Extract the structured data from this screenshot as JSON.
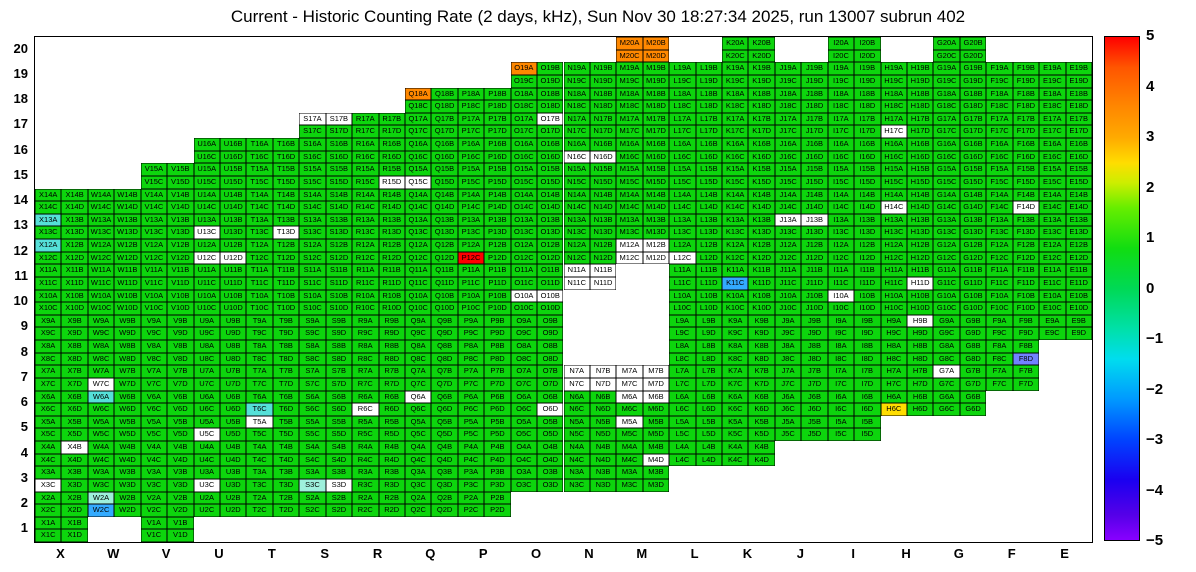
{
  "title": "Current - Historic Counting Rate (2 days, kHz), Sun Nov 30 18:27:34 2025, run 13007 subrun 402",
  "chart_data": {
    "type": "heatmap",
    "title": "Current - Historic Counting Rate (2 days, kHz), Sun Nov 30 18:27:34 2025, run 13007 subrun 402",
    "columns": [
      "X",
      "W",
      "V",
      "U",
      "T",
      "S",
      "R",
      "Q",
      "P",
      "O",
      "N",
      "M",
      "L",
      "K",
      "J",
      "I",
      "H",
      "G",
      "F",
      "E"
    ],
    "rows": [
      20,
      19,
      18,
      17,
      16,
      15,
      14,
      13,
      12,
      11,
      10,
      9,
      8,
      7,
      6,
      5,
      4,
      3,
      2,
      1
    ],
    "subcells": [
      "A",
      "B",
      "C",
      "D"
    ],
    "x_axis_labels": [
      "X",
      "W",
      "V",
      "U",
      "T",
      "S",
      "R",
      "Q",
      "P",
      "O",
      "N",
      "M",
      "L",
      "K",
      "J",
      "I",
      "H",
      "G",
      "F",
      "E"
    ],
    "y_axis_labels": [
      "20",
      "19",
      "18",
      "17",
      "16",
      "15",
      "14",
      "13",
      "12",
      "11",
      "10",
      "9",
      "8",
      "7",
      "6",
      "5",
      "4",
      "3",
      "2",
      "1"
    ],
    "row_columns": {
      "20": [
        "M",
        "K",
        "I",
        "G"
      ],
      "19": [
        "O",
        "N",
        "M",
        "L",
        "K",
        "J",
        "I",
        "H",
        "G",
        "F",
        "E"
      ],
      "18": [
        "Q",
        "P",
        "O",
        "N",
        "M",
        "L",
        "K",
        "J",
        "I",
        "H",
        "G",
        "F",
        "E"
      ],
      "17": [
        "S",
        "R",
        "Q",
        "P",
        "O",
        "N",
        "M",
        "L",
        "K",
        "J",
        "I",
        "H",
        "G",
        "F",
        "E"
      ],
      "16": [
        "U",
        "T",
        "S",
        "R",
        "Q",
        "P",
        "O",
        "N",
        "M",
        "L",
        "K",
        "J",
        "I",
        "H",
        "G",
        "F",
        "E"
      ],
      "15": [
        "V",
        "U",
        "T",
        "S",
        "R",
        "Q",
        "P",
        "O",
        "N",
        "M",
        "L",
        "K",
        "J",
        "I",
        "H",
        "G",
        "F",
        "E"
      ],
      "14": [
        "X",
        "W",
        "V",
        "U",
        "T",
        "S",
        "R",
        "Q",
        "P",
        "O",
        "N",
        "M",
        "L",
        "K",
        "J",
        "I",
        "H",
        "G",
        "F",
        "E"
      ],
      "13": [
        "X",
        "W",
        "V",
        "U",
        "T",
        "S",
        "R",
        "Q",
        "P",
        "O",
        "N",
        "M",
        "L",
        "K",
        "J",
        "I",
        "H",
        "G",
        "F",
        "E"
      ],
      "12": [
        "X",
        "W",
        "V",
        "U",
        "T",
        "S",
        "R",
        "Q",
        "P",
        "O",
        "N",
        "M",
        "L",
        "K",
        "J",
        "I",
        "H",
        "G",
        "F",
        "E"
      ],
      "11": [
        "X",
        "W",
        "V",
        "U",
        "T",
        "S",
        "R",
        "Q",
        "P",
        "O",
        "N",
        "L",
        "K",
        "J",
        "I",
        "H",
        "G",
        "F",
        "E"
      ],
      "10": [
        "X",
        "W",
        "V",
        "U",
        "T",
        "S",
        "R",
        "Q",
        "P",
        "O",
        "L",
        "K",
        "J",
        "I",
        "H",
        "G",
        "F",
        "E"
      ],
      "9": [
        "X",
        "W",
        "V",
        "U",
        "T",
        "S",
        "R",
        "Q",
        "P",
        "O",
        "L",
        "K",
        "J",
        "I",
        "H",
        "G",
        "F",
        "E"
      ],
      "8": [
        "X",
        "W",
        "V",
        "U",
        "T",
        "S",
        "R",
        "Q",
        "P",
        "O",
        "L",
        "K",
        "J",
        "I",
        "H",
        "G",
        "F"
      ],
      "7": [
        "X",
        "W",
        "V",
        "U",
        "T",
        "S",
        "R",
        "Q",
        "P",
        "O",
        "N",
        "M",
        "L",
        "K",
        "J",
        "I",
        "H",
        "G",
        "F"
      ],
      "6": [
        "X",
        "W",
        "V",
        "U",
        "T",
        "S",
        "R",
        "Q",
        "P",
        "O",
        "N",
        "M",
        "L",
        "K",
        "J",
        "I",
        "H",
        "G"
      ],
      "5": [
        "X",
        "W",
        "V",
        "U",
        "T",
        "S",
        "R",
        "Q",
        "P",
        "O",
        "N",
        "M",
        "L",
        "K",
        "J",
        "I"
      ],
      "4": [
        "X",
        "W",
        "V",
        "U",
        "T",
        "S",
        "R",
        "Q",
        "P",
        "O",
        "N",
        "M",
        "L",
        "K"
      ],
      "3": [
        "X",
        "W",
        "V",
        "U",
        "T",
        "S",
        "R",
        "Q",
        "P",
        "O",
        "N",
        "M"
      ],
      "2": [
        "X",
        "W",
        "V",
        "U",
        "T",
        "S",
        "R",
        "Q",
        "P"
      ],
      "1": [
        "X",
        "V"
      ]
    },
    "default_color": "green",
    "palette": {
      "green": "#0dd50d",
      "white": "#ffffff",
      "red": "#ff0000",
      "orange": "#ff8800",
      "yellow": "#ffdd00",
      "cyan": "#55e0d8",
      "paleaqua": "#9ef0dc",
      "skyblue": "#33aaff",
      "blue": "#7282ff"
    },
    "cell_colors": {
      "M20A": "orange",
      "M20B": "orange",
      "M20C": "orange",
      "M20D": "orange",
      "O19A": "orange",
      "Q18A": "orange",
      "S17A": "white",
      "S17B": "white",
      "O17B": "white",
      "H17C": "white",
      "N16C": "white",
      "N16D": "white",
      "R15D": "white",
      "Q15C": "white",
      "H14C": "white",
      "F14D": "white",
      "X13A": "cyan",
      "J13A": "white",
      "J13B": "white",
      "U13C": "white",
      "T13D": "white",
      "X12A": "cyan",
      "U12C": "white",
      "U12D": "white",
      "P12C": "red",
      "M12A": "white",
      "M12B": "white",
      "M12C": "white",
      "M12D": "white",
      "L12C": "white",
      "N11A": "white",
      "N11B": "white",
      "N11C": "white",
      "N11D": "white",
      "K11C": "skyblue",
      "H11D": "white",
      "O10A": "white",
      "O10B": "white",
      "I10A": "white",
      "H9B": "white",
      "F8D": "blue",
      "W7C": "white",
      "G7A": "white",
      "N7A": "white",
      "N7B": "white",
      "N7C": "white",
      "N7D": "white",
      "M7A": "white",
      "M7B": "white",
      "M7C": "white",
      "M7D": "white",
      "W6A": "cyan",
      "T6C": "cyan",
      "R6C": "white",
      "Q6A": "white",
      "O6D": "white",
      "M6A": "white",
      "M6B": "white",
      "H6C": "yellow",
      "M5A": "white",
      "T5A": "white",
      "U5C": "white",
      "X4B": "white",
      "M4D": "white",
      "X3C": "white",
      "U3C": "white",
      "S3C": "paleaqua",
      "S3D": "white",
      "W2A": "paleaqua",
      "W2C": "skyblue"
    },
    "colorbar": {
      "min": -5,
      "max": 5,
      "tick_labels": [
        "5",
        "4",
        "3",
        "2",
        "1",
        "0",
        "−1",
        "−2",
        "−3",
        "−4",
        "−5"
      ],
      "gradient_stops": [
        {
          "v": 5.0,
          "color": "#ff0000"
        },
        {
          "v": 4.4,
          "color": "#ff5500"
        },
        {
          "v": 3.6,
          "color": "#ff8800"
        },
        {
          "v": 3.0,
          "color": "#ffaa00"
        },
        {
          "v": 2.5,
          "color": "#ffdd00"
        },
        {
          "v": 2.1,
          "color": "#ccee00"
        },
        {
          "v": 1.6,
          "color": "#66ee00"
        },
        {
          "v": 0.8,
          "color": "#11dd11"
        },
        {
          "v": 0.0,
          "color": "#00d955"
        },
        {
          "v": -0.8,
          "color": "#00e0a8"
        },
        {
          "v": -1.4,
          "color": "#00ddee"
        },
        {
          "v": -2.2,
          "color": "#0099ff"
        },
        {
          "v": -3.0,
          "color": "#0044ff"
        },
        {
          "v": -3.8,
          "color": "#1a00f0"
        },
        {
          "v": -4.5,
          "color": "#5500e8"
        },
        {
          "v": -5.0,
          "color": "#8800ff"
        }
      ]
    }
  }
}
